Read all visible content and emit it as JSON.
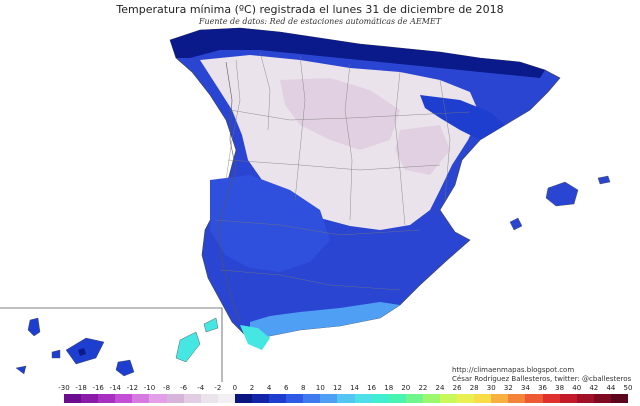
{
  "header": {
    "title": "Temperatura mínima (ºC) registrada el lunes 31 de diciembre de 2018",
    "subtitle": "Fuente de datos: Red de estaciones automáticas de AEMET"
  },
  "credits": {
    "url": "http://climaenmapas.blogspot.com",
    "author": "César Rodríguez Ballesteros, twitter: @cballesteros"
  },
  "legend": {
    "ticks": [
      "-30",
      "-18",
      "-16",
      "-14",
      "-12",
      "-10",
      "-8",
      "-6",
      "-4",
      "-2",
      "0",
      "2",
      "4",
      "6",
      "8",
      "10",
      "12",
      "14",
      "16",
      "18",
      "20",
      "22",
      "24",
      "26",
      "28",
      "30",
      "32",
      "34",
      "36",
      "38",
      "40",
      "42",
      "44",
      "50"
    ],
    "colors": [
      "#6a0d8f",
      "#8a1aa8",
      "#a730c2",
      "#c24fd6",
      "#d47ae0",
      "#e3a0e8",
      "#d7b4d9",
      "#e2cde2",
      "#ece4ec",
      "#f2f0f2",
      "#0a1580",
      "#1224a8",
      "#1e3ed0",
      "#2f5ae6",
      "#3f7af0",
      "#4fa0f4",
      "#54c6f2",
      "#4ee0e8",
      "#40eed2",
      "#48f4b0",
      "#70f68c",
      "#9cf86e",
      "#c8f85a",
      "#eaf052",
      "#f8dc48",
      "#f8b040",
      "#f4843a",
      "#ee5a34",
      "#e0302e",
      "#c41a2a",
      "#a01026",
      "#7e0a22",
      "#5a061c"
    ]
  },
  "map_colors": {
    "sea": "#ffffff",
    "cold_pink": "#e4d6e4",
    "near_zero": "#f1eff1",
    "light_blue": "#3d5ee0",
    "mid_blue": "#1c33c4",
    "deep_blue": "#0a1a8a",
    "cyan": "#46e6e2",
    "border": "#666666"
  }
}
